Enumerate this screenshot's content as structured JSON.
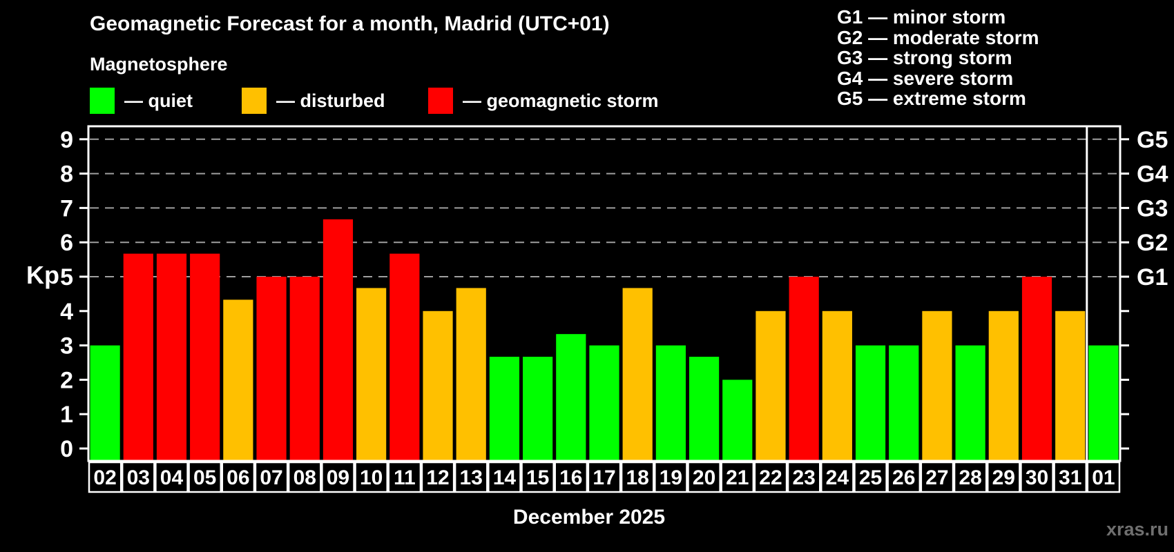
{
  "header": {
    "title": "Geomagnetic Forecast for a month, Madrid (UTC+01)",
    "subtitle": "Magnetosphere"
  },
  "legend": {
    "items": [
      {
        "name": "quiet",
        "label": "— quiet",
        "color": "#00ff00"
      },
      {
        "name": "disturbed",
        "label": "— disturbed",
        "color": "#ffc000"
      },
      {
        "name": "storm",
        "label": "— geomagnetic storm",
        "color": "#ff0000"
      }
    ]
  },
  "g_legend": {
    "lines": [
      "G1 — minor storm",
      "G2 — moderate storm",
      "G3 — strong storm",
      "G4 — severe storm",
      "G5 — extreme storm"
    ]
  },
  "chart_data": {
    "type": "bar",
    "title": "Geomagnetic Forecast for a month, Madrid (UTC+01)",
    "xlabel": "December 2025",
    "ylabel": "Kp",
    "ylim": [
      0,
      9
    ],
    "yticks": [
      0,
      1,
      2,
      3,
      4,
      5,
      6,
      7,
      8,
      9
    ],
    "gridlines_at": [
      5,
      6,
      7,
      8,
      9
    ],
    "right_axis_labels": [
      {
        "value": 5,
        "label": "G1"
      },
      {
        "value": 6,
        "label": "G2"
      },
      {
        "value": 7,
        "label": "G3"
      },
      {
        "value": 8,
        "label": "G4"
      },
      {
        "value": 9,
        "label": "G5"
      }
    ],
    "categories": [
      "02",
      "03",
      "04",
      "05",
      "06",
      "07",
      "08",
      "09",
      "10",
      "11",
      "12",
      "13",
      "14",
      "15",
      "16",
      "17",
      "18",
      "19",
      "20",
      "21",
      "22",
      "23",
      "24",
      "25",
      "26",
      "27",
      "28",
      "29",
      "30",
      "31",
      "01"
    ],
    "values": [
      3,
      5.67,
      5.67,
      5.67,
      4.33,
      5,
      5,
      6.67,
      4.67,
      5.67,
      4,
      4.67,
      2.67,
      2.67,
      3.33,
      3,
      4.67,
      3,
      2.67,
      2,
      4,
      5,
      4,
      3,
      3,
      4,
      3,
      4,
      5,
      4,
      3
    ],
    "statuses": [
      "quiet",
      "storm",
      "storm",
      "storm",
      "disturbed",
      "storm",
      "storm",
      "storm",
      "disturbed",
      "storm",
      "disturbed",
      "disturbed",
      "quiet",
      "quiet",
      "quiet",
      "quiet",
      "disturbed",
      "quiet",
      "quiet",
      "quiet",
      "disturbed",
      "storm",
      "disturbed",
      "quiet",
      "quiet",
      "disturbed",
      "quiet",
      "disturbed",
      "storm",
      "disturbed",
      "quiet"
    ],
    "status_colors": {
      "quiet": "#00ff00",
      "disturbed": "#ffc000",
      "storm": "#ff0000"
    },
    "separator_before_index": 30,
    "grid_color": "#a0a0a0",
    "axis_color": "#ffffff",
    "legend_position": "top"
  },
  "footer": {
    "watermark": "xras.ru"
  }
}
